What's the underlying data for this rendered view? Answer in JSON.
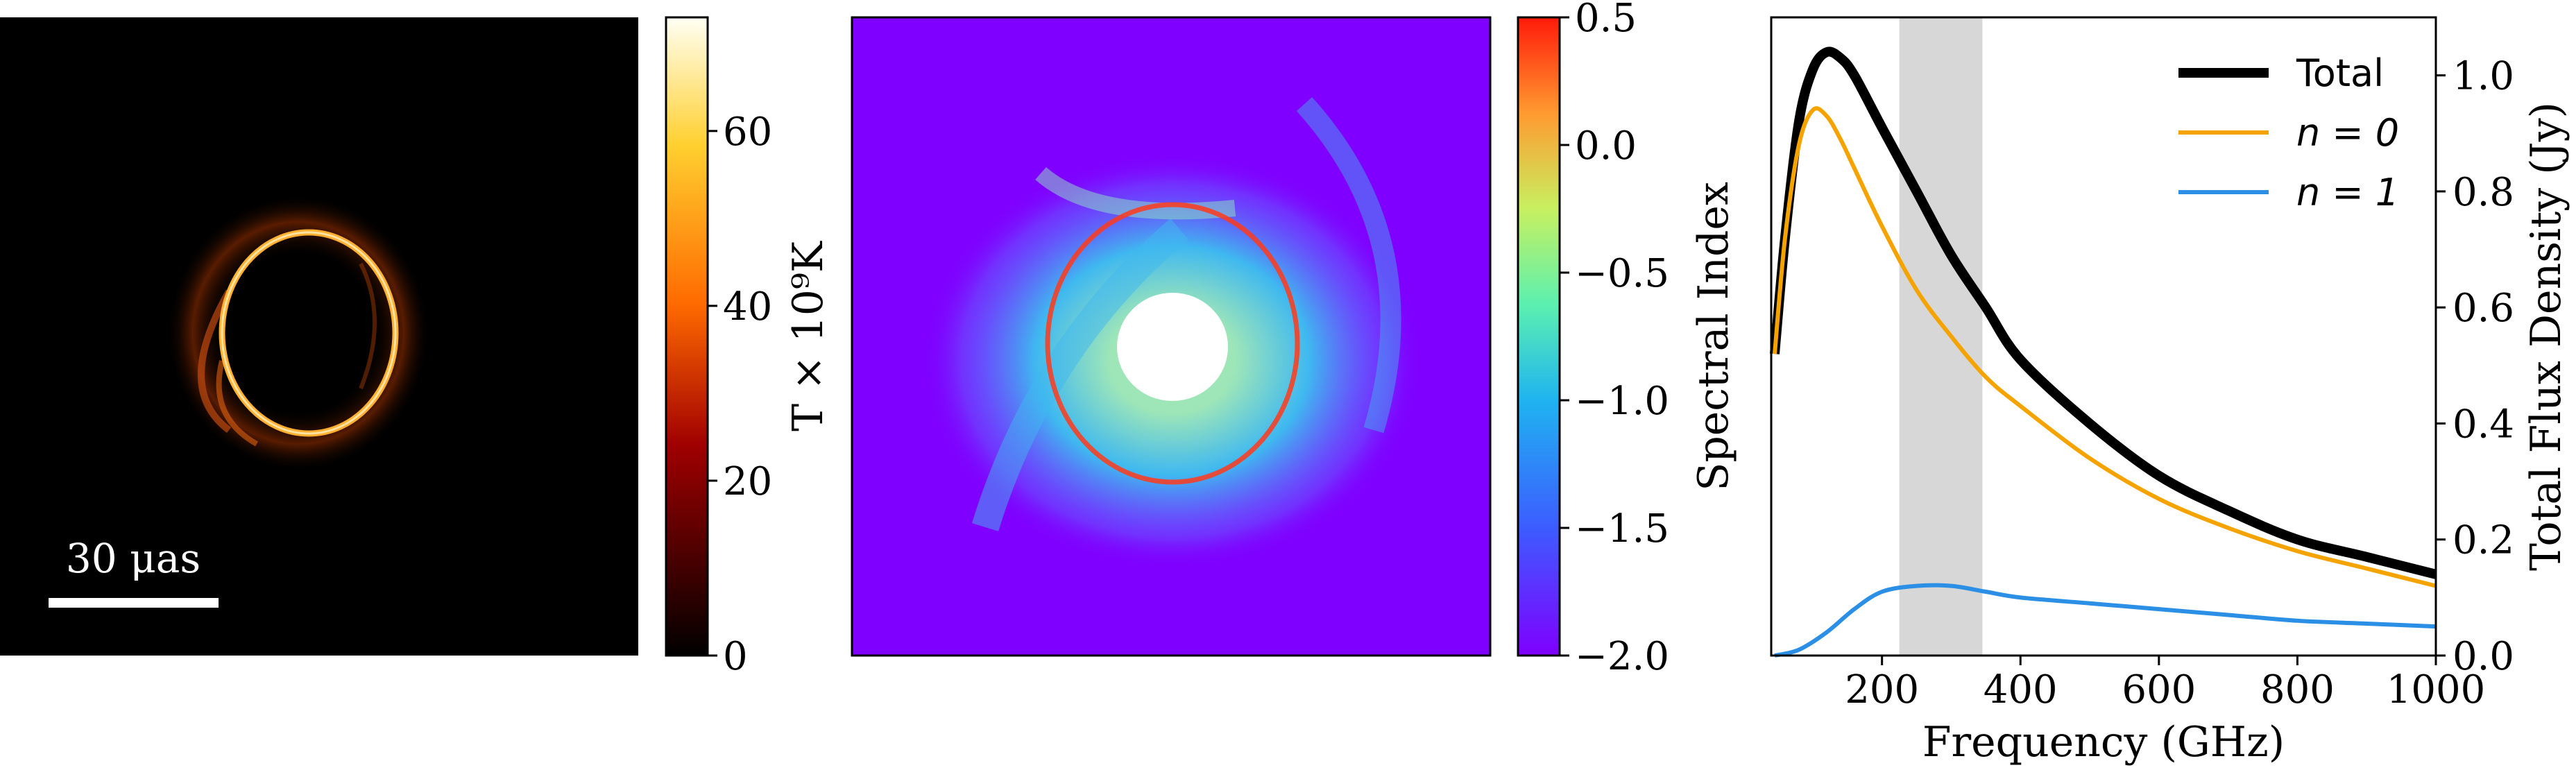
{
  "panels": [
    {
      "type": "heatmap",
      "description_label": "brightness-temperature-image",
      "colorbar": {
        "label": "T × 10⁹K",
        "ticks": [
          0,
          20,
          40,
          60
        ],
        "range": [
          0,
          73
        ],
        "colormap": "afmhot"
      },
      "scalebar_label": "30 μas"
    },
    {
      "type": "heatmap",
      "colorbar": {
        "label": "Spectral Index",
        "ticks": [
          -2.0,
          -1.5,
          -1.0,
          -0.5,
          0.0,
          0.5
        ],
        "tick_labels": [
          "−2.0",
          "−1.5",
          "−1.0",
          "−0.5",
          "0.0",
          "0.5"
        ],
        "range": [
          -2.0,
          0.5
        ],
        "colormap": "rainbow"
      }
    }
  ],
  "chart_data": {
    "type": "line",
    "xlabel": "Frequency (GHz)",
    "ylabel": "Total Flux Density (Jy)",
    "xlim": [
      40,
      1000
    ],
    "ylim": [
      0,
      1.1
    ],
    "xticks": [
      200,
      400,
      600,
      800,
      1000
    ],
    "yticks": [
      0.0,
      0.2,
      0.4,
      0.6,
      0.8,
      1.0
    ],
    "ytick_labels": [
      "0.0",
      "0.2",
      "0.4",
      "0.6",
      "0.8",
      "1.0"
    ],
    "yaxis_side": "right",
    "shaded_band": [
      225,
      345
    ],
    "legend_position": "top-right",
    "series": [
      {
        "name": "Total",
        "color": "#000000",
        "linewidth": "thick",
        "x": [
          45,
          60,
          80,
          100,
          120,
          140,
          160,
          200,
          250,
          300,
          350,
          400,
          500,
          600,
          700,
          800,
          900,
          1000
        ],
        "y": [
          0.52,
          0.72,
          0.92,
          1.01,
          1.04,
          1.03,
          1.0,
          0.91,
          0.8,
          0.69,
          0.6,
          0.51,
          0.4,
          0.31,
          0.25,
          0.2,
          0.17,
          0.14
        ]
      },
      {
        "name": "n = 0",
        "color": "#f5a300",
        "linewidth": "normal",
        "x": [
          45,
          60,
          80,
          100,
          120,
          140,
          160,
          200,
          250,
          300,
          350,
          400,
          500,
          600,
          700,
          800,
          900,
          1000
        ],
        "y": [
          0.52,
          0.72,
          0.88,
          0.94,
          0.93,
          0.89,
          0.84,
          0.74,
          0.63,
          0.55,
          0.48,
          0.43,
          0.34,
          0.27,
          0.22,
          0.18,
          0.15,
          0.12
        ]
      },
      {
        "name": "n = 1",
        "color": "#2b8fe6",
        "linewidth": "normal",
        "x": [
          45,
          80,
          120,
          160,
          200,
          250,
          300,
          350,
          400,
          500,
          600,
          700,
          800,
          900,
          1000
        ],
        "y": [
          0.0,
          0.01,
          0.04,
          0.08,
          0.11,
          0.12,
          0.12,
          0.11,
          0.1,
          0.09,
          0.08,
          0.07,
          0.06,
          0.055,
          0.05
        ]
      }
    ]
  }
}
